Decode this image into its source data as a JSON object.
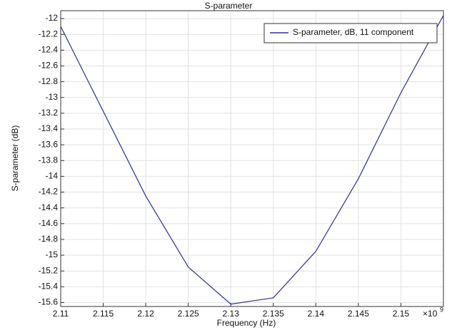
{
  "chart_data": {
    "type": "line",
    "title": "S-parameter",
    "x_label": "Frequency (Hz)",
    "y_label": "S-parameter (dB)",
    "x_multiplier": {
      "base": "×10",
      "exponent": "9"
    },
    "x": [
      2.11,
      2.12,
      2.125,
      2.13,
      2.135,
      2.14,
      2.145,
      2.15,
      2.155
    ],
    "series": [
      {
        "name": "S-parameter, dB, 11 component",
        "color": "#2b2ba8",
        "values": [
          -12.1,
          -14.25,
          -15.15,
          -15.62,
          -15.54,
          -14.95,
          -14.03,
          -12.94,
          -11.96
        ]
      }
    ],
    "xlim": [
      2.11,
      2.155
    ],
    "ylim": [
      -15.65,
      -11.9
    ],
    "xticks": [
      2.11,
      2.115,
      2.12,
      2.125,
      2.13,
      2.135,
      2.14,
      2.145,
      2.15
    ],
    "yticks": [
      -12,
      -12.2,
      -12.4,
      -12.6,
      -12.8,
      -13,
      -13.2,
      -13.4,
      -13.6,
      -13.8,
      -14,
      -14.2,
      -14.4,
      -14.6,
      -14.8,
      -15,
      -15.2,
      -15.4,
      -15.6
    ],
    "grid": true,
    "legend_position": "upper right"
  }
}
